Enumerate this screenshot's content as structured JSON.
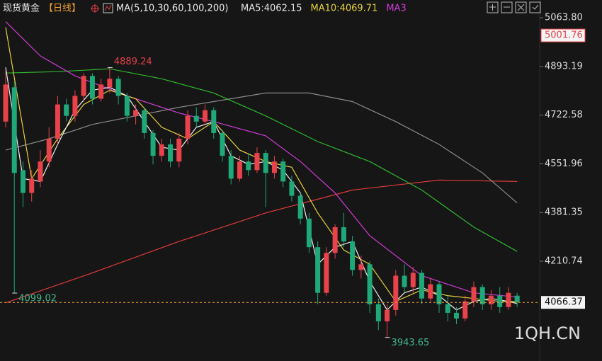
{
  "chart_data": {
    "type": "candlestick",
    "title": "现货黄金",
    "period": "【日线】",
    "indicator": "MA(5,10,30,60,100,200)",
    "legend": [
      {
        "label": "MA5:4062.15",
        "color": "#e6e6e6"
      },
      {
        "label": "MA10:4069.71",
        "color": "#e8d23a"
      },
      {
        "label": "MA3",
        "color": "#d13bd6"
      }
    ],
    "up_color": "#e8424a",
    "down_color": "#1fa878",
    "open": [
      4700,
      4820,
      4530,
      4450,
      4490,
      4560,
      4640,
      4760,
      4720,
      4790,
      4860,
      4780,
      4820,
      4850,
      4790,
      4720,
      4740,
      4660,
      4580,
      4620,
      4560,
      4640,
      4720,
      4700,
      4740,
      4660,
      4580,
      4500,
      4560,
      4530,
      4590,
      4520,
      4560,
      4490,
      4440,
      4360,
      4260,
      4100,
      4240,
      4330,
      4280,
      4180,
      4200,
      4060,
      4000,
      4040,
      4160,
      4120,
      4170,
      4080,
      4130,
      4060,
      4030,
      4010,
      4070,
      4120,
      4060,
      4090,
      4050,
      4090
    ],
    "high": [
      4880,
      4840,
      4560,
      4530,
      4600,
      4680,
      4790,
      4780,
      4810,
      4870,
      4870,
      4850,
      4889.24,
      4860,
      4800,
      4760,
      4750,
      4670,
      4640,
      4640,
      4660,
      4740,
      4750,
      4760,
      4750,
      4670,
      4600,
      4580,
      4590,
      4610,
      4600,
      4580,
      4570,
      4510,
      4450,
      4380,
      4280,
      4260,
      4340,
      4380,
      4300,
      4230,
      4210,
      4080,
      4060,
      4180,
      4200,
      4190,
      4180,
      4150,
      4140,
      4090,
      4050,
      4090,
      4140,
      4130,
      4110,
      4120,
      4120,
      4100
    ],
    "low": [
      4680,
      4099.02,
      4400,
      4420,
      4470,
      4540,
      4620,
      4700,
      4700,
      4770,
      4760,
      4770,
      4800,
      4760,
      4700,
      4690,
      4640,
      4550,
      4560,
      4540,
      4540,
      4620,
      4680,
      4690,
      4640,
      4560,
      4480,
      4490,
      4510,
      4520,
      4400,
      4500,
      4470,
      4420,
      4340,
      4240,
      4060,
      4090,
      4220,
      4260,
      4160,
      4150,
      4030,
      3970,
      3943.65,
      4020,
      4100,
      4100,
      4060,
      4070,
      4030,
      4000,
      3990,
      4000,
      4050,
      4040,
      4040,
      4030,
      4040,
      4050
    ],
    "close": [
      4830,
      4520,
      4450,
      4500,
      4560,
      4640,
      4760,
      4720,
      4790,
      4860,
      4780,
      4830,
      4850,
      4790,
      4720,
      4740,
      4660,
      4580,
      4620,
      4560,
      4640,
      4720,
      4700,
      4740,
      4660,
      4580,
      4500,
      4560,
      4530,
      4590,
      4520,
      4560,
      4490,
      4440,
      4360,
      4260,
      4100,
      4240,
      4330,
      4280,
      4180,
      4200,
      4060,
      4000,
      4040,
      4160,
      4120,
      4170,
      4080,
      4130,
      4060,
      4030,
      4010,
      4070,
      4120,
      4060,
      4090,
      4050,
      4100,
      4066.37
    ],
    "series": [
      {
        "color": "#e03a3a",
        "x": [
          0,
          10,
          20,
          30,
          40,
          50,
          59
        ],
        "values": [
          4065,
          4170,
          4280,
          4380,
          4460,
          4495,
          4490
        ]
      },
      {
        "color": "#8a8a8a",
        "x": [
          0,
          5,
          10,
          20,
          30,
          35,
          40,
          45,
          50,
          55,
          59
        ],
        "values": [
          4600,
          4640,
          4690,
          4750,
          4800,
          4800,
          4770,
          4700,
          4620,
          4520,
          4415
        ]
      },
      {
        "color": "#2fb82f",
        "x": [
          0,
          6,
          12,
          18,
          24,
          30,
          36,
          42,
          48,
          54,
          59
        ],
        "values": [
          4870,
          4875,
          4885,
          4850,
          4800,
          4720,
          4630,
          4560,
          4460,
          4330,
          4245
        ]
      },
      {
        "color": "#d13bd6",
        "x": [
          0,
          4,
          8,
          14,
          20,
          24,
          30,
          34,
          38,
          42,
          48,
          54,
          59
        ],
        "values": [
          5050,
          4930,
          4860,
          4790,
          4730,
          4700,
          4650,
          4560,
          4450,
          4300,
          4160,
          4100,
          4085
        ]
      },
      {
        "color": "#e8d23a",
        "x": [
          0,
          3,
          6,
          9,
          12,
          15,
          18,
          21,
          24,
          27,
          30,
          33,
          36,
          39,
          42,
          45,
          48,
          51,
          54,
          57,
          59
        ],
        "values": [
          5030,
          4500,
          4640,
          4760,
          4810,
          4780,
          4680,
          4640,
          4700,
          4600,
          4560,
          4540,
          4380,
          4250,
          4200,
          4070,
          4110,
          4090,
          4080,
          4070,
          4069.71
        ]
      },
      {
        "color": "#f0f0f0",
        "x": [
          0,
          2,
          4,
          6,
          8,
          10,
          12,
          14,
          16,
          18,
          20,
          22,
          24,
          26,
          28,
          30,
          32,
          34,
          36,
          38,
          40,
          42,
          44,
          46,
          48,
          50,
          52,
          54,
          56,
          58,
          59
        ],
        "values": [
          4890,
          4500,
          4490,
          4620,
          4740,
          4810,
          4820,
          4790,
          4700,
          4610,
          4600,
          4680,
          4700,
          4580,
          4550,
          4560,
          4530,
          4450,
          4200,
          4260,
          4280,
          4140,
          4040,
          4100,
          4120,
          4090,
          4040,
          4070,
          4080,
          4070,
          4062.15
        ]
      }
    ],
    "ylim": [
      3861.1,
      5126.0
    ],
    "yticks": [
      {
        "value": 5063.8,
        "label": "5063.80"
      },
      4893.19,
      4722.58,
      4551.96,
      4381.35,
      4210.74
    ],
    "marked_price": 5001.76,
    "last_price": 4066.37,
    "annotations": [
      4889.24,
      4099.02,
      3943.65
    ],
    "watermark": "1QH.CN"
  }
}
